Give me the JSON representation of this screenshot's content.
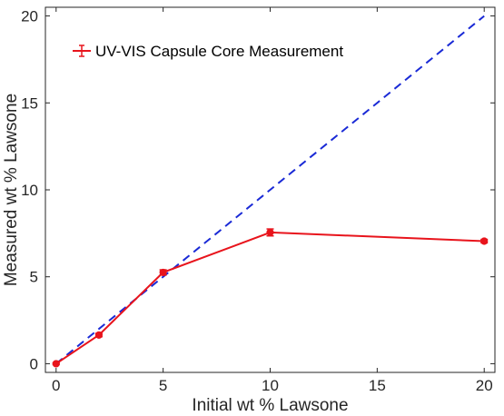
{
  "chart_data": {
    "type": "line",
    "title": "",
    "xlabel": "Initial wt % Lawsone",
    "ylabel": "Measured wt % Lawsone",
    "xlim": [
      -0.5,
      20.5
    ],
    "ylim": [
      -0.5,
      20.5
    ],
    "xticks": [
      0,
      5,
      10,
      15,
      20
    ],
    "yticks": [
      0,
      5,
      10,
      15,
      20
    ],
    "grid": false,
    "legend": {
      "position": "top-left"
    },
    "series": [
      {
        "name": "UV-VIS Capsule Core Measurement",
        "style": "solid-with-errorbars",
        "color": "#e8141c",
        "x": [
          0,
          2,
          5,
          10,
          20
        ],
        "y": [
          0,
          1.65,
          5.25,
          7.55,
          7.05
        ],
        "err": [
          0.05,
          0.1,
          0.15,
          0.2,
          0.1
        ]
      },
      {
        "name": "",
        "style": "dashed",
        "color": "#1a2ad6",
        "x": [
          0,
          20
        ],
        "y": [
          0,
          20
        ]
      }
    ]
  }
}
